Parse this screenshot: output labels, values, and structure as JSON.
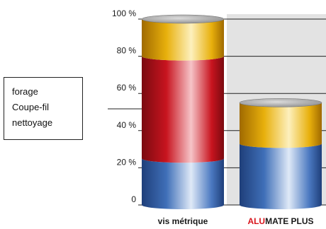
{
  "chart_data": {
    "type": "bar",
    "stacked": true,
    "categories": [
      "vis métrique",
      "ALUMATE PLUS"
    ],
    "category_label_parts": [
      [
        {
          "text": "vis métrique",
          "color": "#1a1a1a"
        }
      ],
      [
        {
          "text": "ALU",
          "color": "#d8141c"
        },
        {
          "text": "MATE PLUS",
          "color": "#1a1a1a"
        }
      ]
    ],
    "series": [
      {
        "name": "nettoyage",
        "values": [
          25,
          33
        ],
        "color": "#3f6fb8"
      },
      {
        "name": "Coupe-fil",
        "values": [
          55,
          0
        ],
        "color": "#c8141f"
      },
      {
        "name": "forage",
        "values": [
          20,
          22
        ],
        "color": "#e8b00c"
      }
    ],
    "y_tick_labels": [
      "0",
      "20 %",
      "40 %",
      "60 %",
      "80 %",
      "100 %"
    ],
    "yticks": [
      0,
      20,
      40,
      60,
      80,
      100
    ],
    "ylim": [
      0,
      100
    ],
    "grid": true,
    "legend": {
      "items": [
        "forage",
        "Coupe-fil",
        "nettoyage"
      ],
      "placement": "left"
    }
  }
}
